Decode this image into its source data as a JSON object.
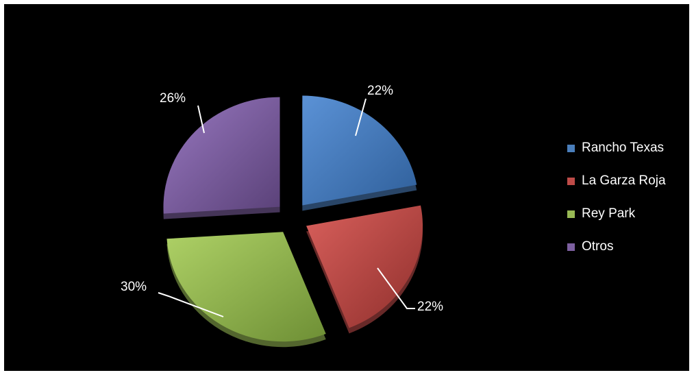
{
  "chart_data": {
    "type": "pie",
    "title": "",
    "categories": [
      "Rancho Texas",
      "La Garza Roja",
      "Rey Park",
      "Otros"
    ],
    "values": [
      22,
      22,
      30,
      26
    ],
    "labels": [
      "22%",
      "22%",
      "30%",
      "26%"
    ],
    "colors": [
      "#4a7ebb",
      "#be4b48",
      "#98b954",
      "#7d60a0"
    ],
    "legend_position": "right",
    "exploded": true,
    "style": "3d-tilted"
  }
}
